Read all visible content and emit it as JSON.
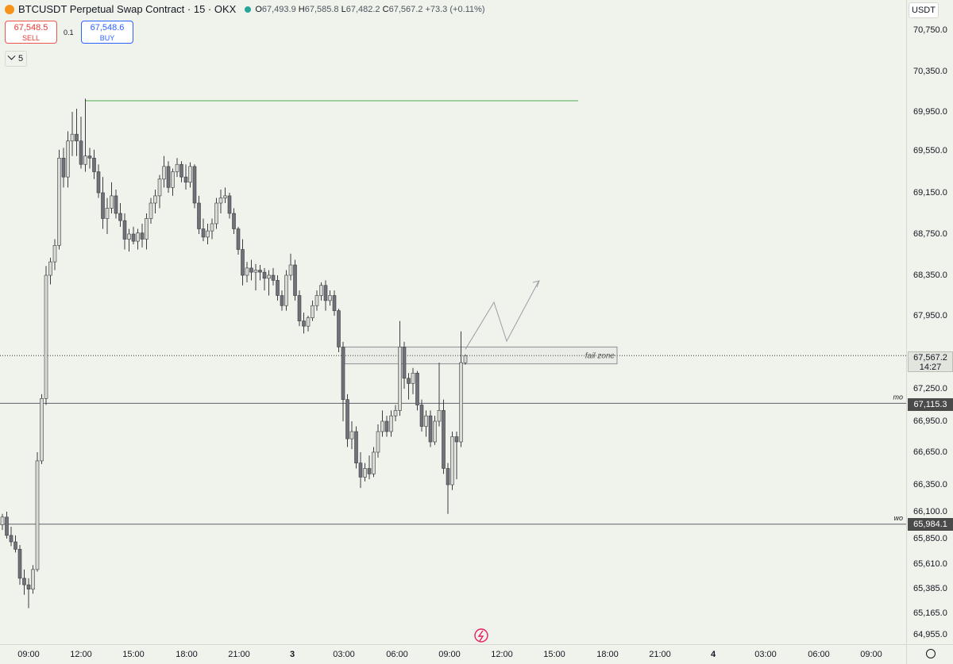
{
  "header": {
    "symbol_title": "BTCUSDT Perpetual Swap Contract · 15 · OKX",
    "coin_icon": "bitcoin-icon",
    "ohlc": {
      "o_label": "O",
      "o": "67,493.9",
      "h_label": "H",
      "h": "67,585.8",
      "l_label": "L",
      "l": "67,482.2",
      "c_label": "C",
      "c": "67,567.2",
      "change": "+73.3 (+0.11%)"
    }
  },
  "trade": {
    "sell_price": "67,548.5",
    "sell_label": "SELL",
    "quantity": "0.1",
    "buy_price": "67,548.6",
    "buy_label": "BUY"
  },
  "indicators_toggle": {
    "label": "5",
    "icon": "chevron-down-icon"
  },
  "price_axis": {
    "currency": "USDT",
    "ticks": [
      "70,750.0",
      "70,350.0",
      "69,950.0",
      "69,550.0",
      "69,150.0",
      "68,750.0",
      "68,350.0",
      "67,950.0",
      "67,250.0",
      "66,950.0",
      "66,650.0",
      "66,350.0",
      "66,100.0",
      "65,850.0",
      "65,610.0",
      "65,385.0",
      "65,165.0",
      "64,955.0"
    ],
    "tick_values": [
      70750,
      70350,
      69950,
      69550,
      69150,
      68750,
      68350,
      67950,
      67250,
      66950,
      66650,
      66350,
      66100,
      65850,
      65610,
      65385,
      65165,
      64955
    ],
    "current_price": "67,567.2",
    "countdown": "14:27",
    "level_mo": "67,115.3",
    "level_wo": "65,984.1"
  },
  "time_axis": {
    "ticks": [
      "09:00",
      "12:00",
      "15:00",
      "18:00",
      "21:00",
      "3",
      "03:00",
      "06:00",
      "09:00",
      "12:00",
      "15:00",
      "18:00",
      "21:00",
      "4",
      "03:00",
      "06:00",
      "09:00"
    ]
  },
  "drawings": {
    "fail_zone_label": "fail zone",
    "mo_label": "mo",
    "wo_label": "wo",
    "high_line_price": 70060,
    "fail_zone_top": 67650,
    "fail_zone_bottom": 67580
  },
  "chart_data": {
    "type": "candlestick",
    "interval": "15m",
    "start": "2024-07-02 08:00",
    "up_color": "#d8dbd4",
    "down_color": "#6f7378",
    "candles": [
      [
        65980,
        66080,
        65930,
        66050
      ],
      [
        66050,
        66100,
        65850,
        65880
      ],
      [
        65880,
        65960,
        65780,
        65820
      ],
      [
        65820,
        65880,
        65720,
        65750
      ],
      [
        65750,
        65790,
        65420,
        65480
      ],
      [
        65480,
        65560,
        65330,
        65420
      ],
      [
        65420,
        65480,
        65210,
        65380
      ],
      [
        65380,
        65600,
        65340,
        65560
      ],
      [
        65560,
        66650,
        65540,
        66570
      ],
      [
        66570,
        67200,
        66540,
        67160
      ],
      [
        67160,
        68440,
        67100,
        68350
      ],
      [
        68350,
        68520,
        68260,
        68480
      ],
      [
        68480,
        68700,
        68400,
        68640
      ],
      [
        68640,
        69560,
        68600,
        69480
      ],
      [
        69480,
        69580,
        69200,
        69300
      ],
      [
        69300,
        69750,
        69200,
        69650
      ],
      [
        69650,
        69950,
        69500,
        69720
      ],
      [
        69720,
        69980,
        69500,
        69650
      ],
      [
        69650,
        69900,
        69380,
        69420
      ],
      [
        69420,
        70080,
        69350,
        69500
      ],
      [
        69500,
        69580,
        69380,
        69480
      ],
      [
        69480,
        69560,
        69280,
        69350
      ],
      [
        69350,
        69420,
        69100,
        69150
      ],
      [
        69150,
        69300,
        68800,
        68900
      ],
      [
        68900,
        69100,
        68750,
        69000
      ],
      [
        69000,
        69250,
        68950,
        69120
      ],
      [
        69120,
        69180,
        68900,
        68950
      ],
      [
        68950,
        69050,
        68820,
        68880
      ],
      [
        68880,
        68950,
        68600,
        68700
      ],
      [
        68700,
        68800,
        68580,
        68750
      ],
      [
        68750,
        68820,
        68650,
        68680
      ],
      [
        68680,
        68800,
        68600,
        68760
      ],
      [
        68760,
        68850,
        68620,
        68700
      ],
      [
        68700,
        68950,
        68600,
        68900
      ],
      [
        68900,
        69100,
        68850,
        69050
      ],
      [
        69050,
        69180,
        68950,
        69120
      ],
      [
        69120,
        69320,
        69000,
        69280
      ],
      [
        69280,
        69500,
        69200,
        69400
      ],
      [
        69400,
        69450,
        69150,
        69200
      ],
      [
        69200,
        69380,
        69120,
        69350
      ],
      [
        69350,
        69480,
        69300,
        69420
      ],
      [
        69420,
        69450,
        69250,
        69300
      ],
      [
        69300,
        69420,
        69180,
        69250
      ],
      [
        69250,
        69440,
        69200,
        69400
      ],
      [
        69400,
        69420,
        69000,
        69050
      ],
      [
        69050,
        69120,
        68750,
        68800
      ],
      [
        68800,
        68900,
        68680,
        68720
      ],
      [
        68720,
        68850,
        68650,
        68780
      ],
      [
        68780,
        68900,
        68700,
        68850
      ],
      [
        68850,
        69100,
        68800,
        69050
      ],
      [
        69050,
        69180,
        68950,
        69100
      ],
      [
        69100,
        69200,
        69050,
        69120
      ],
      [
        69120,
        69150,
        68900,
        68950
      ],
      [
        68950,
        69000,
        68750,
        68800
      ],
      [
        68800,
        68820,
        68550,
        68600
      ],
      [
        68600,
        68700,
        68250,
        68350
      ],
      [
        68350,
        68480,
        68280,
        68420
      ],
      [
        68420,
        68500,
        68300,
        68380
      ],
      [
        68380,
        68460,
        68200,
        68400
      ],
      [
        68400,
        68450,
        68300,
        68380
      ],
      [
        68380,
        68420,
        68200,
        68320
      ],
      [
        68320,
        68400,
        68150,
        68350
      ],
      [
        68350,
        68420,
        68250,
        68300
      ],
      [
        68300,
        68350,
        68100,
        68150
      ],
      [
        68150,
        68200,
        68000,
        68050
      ],
      [
        68050,
        68400,
        68000,
        68350
      ],
      [
        68350,
        68560,
        68300,
        68450
      ],
      [
        68450,
        68500,
        68100,
        68150
      ],
      [
        68150,
        68200,
        67850,
        67900
      ],
      [
        67900,
        67980,
        67780,
        67850
      ],
      [
        67850,
        67950,
        67800,
        67930
      ],
      [
        67930,
        68100,
        67900,
        68050
      ],
      [
        68050,
        68200,
        68000,
        68150
      ],
      [
        68150,
        68280,
        68100,
        68250
      ],
      [
        68250,
        68300,
        68000,
        68100
      ],
      [
        68100,
        68200,
        68050,
        68150
      ],
      [
        68150,
        68200,
        67950,
        68000
      ],
      [
        68000,
        68020,
        67600,
        67650
      ],
      [
        67650,
        67700,
        66950,
        67150
      ],
      [
        67150,
        67200,
        66700,
        66780
      ],
      [
        66780,
        66950,
        66680,
        66850
      ],
      [
        66850,
        66900,
        66500,
        66550
      ],
      [
        66550,
        66650,
        66320,
        66420
      ],
      [
        66420,
        66550,
        66380,
        66500
      ],
      [
        66500,
        66620,
        66400,
        66450
      ],
      [
        66450,
        66700,
        66420,
        66650
      ],
      [
        66650,
        66920,
        66600,
        66850
      ],
      [
        66850,
        67050,
        66800,
        66950
      ],
      [
        66950,
        67000,
        66800,
        66850
      ],
      [
        66850,
        67050,
        66800,
        67000
      ],
      [
        67000,
        67100,
        66950,
        67050
      ],
      [
        67050,
        67900,
        67000,
        67650
      ],
      [
        67650,
        67700,
        67250,
        67350
      ],
      [
        67350,
        67400,
        67150,
        67300
      ],
      [
        67300,
        67450,
        67200,
        67400
      ],
      [
        67400,
        67420,
        67050,
        67100
      ],
      [
        67100,
        67150,
        66850,
        66900
      ],
      [
        66900,
        67050,
        66800,
        67000
      ],
      [
        67000,
        67050,
        66700,
        66750
      ],
      [
        66750,
        67000,
        66720,
        66950
      ],
      [
        66950,
        67500,
        66900,
        67050
      ],
      [
        67050,
        67150,
        66450,
        66500
      ],
      [
        66500,
        66550,
        66080,
        66350
      ],
      [
        66350,
        66850,
        66300,
        66800
      ],
      [
        66800,
        66850,
        66400,
        66750
      ],
      [
        66750,
        67800,
        66700,
        67500
      ],
      [
        67500,
        67580,
        67480,
        67567
      ]
    ]
  }
}
